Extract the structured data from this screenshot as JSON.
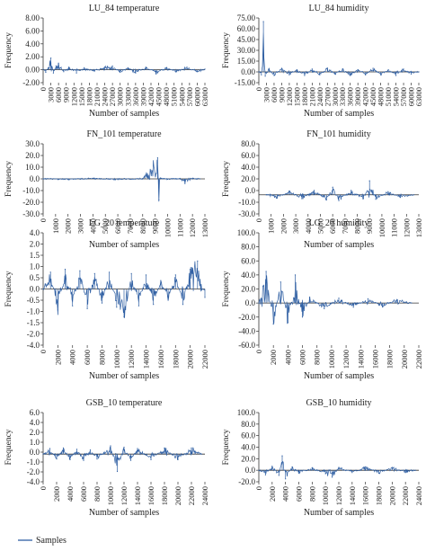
{
  "colors": {
    "series": "#2f5fa3",
    "axis": "#333333",
    "text": "#222222"
  },
  "legend": {
    "label": "Samples",
    "placement": "bottom-left"
  },
  "chart_data": [
    {
      "type": "line",
      "title": "LU_84 temperature",
      "xlabel": "Number of samples",
      "ylabel": "Frequency",
      "xlim": [
        0,
        63000
      ],
      "ylim": [
        -2.0,
        8.0
      ],
      "yticks": [
        "8.00",
        "6.00",
        "4.00",
        "2.00",
        "0.00",
        "-2.00"
      ],
      "xticks": [
        "0",
        "3000",
        "6000",
        "9000",
        "12000",
        "15000",
        "18000",
        "21000",
        "24000",
        "27000",
        "30000",
        "33000",
        "36000",
        "39000",
        "42000",
        "45000",
        "48000",
        "51000",
        "54000",
        "57000",
        "60000",
        "63000"
      ],
      "series": [
        {
          "name": "Samples",
          "note": "noisy signal around 0",
          "x": [
            0,
            1000,
            2000,
            3000,
            4000,
            5000,
            6000,
            8000,
            10000,
            13000,
            16000,
            20000,
            24000,
            27000,
            30000,
            33000,
            36000,
            40000,
            44000,
            48000,
            52000,
            56000,
            60000,
            63000
          ],
          "y": [
            0.1,
            -0.4,
            0.3,
            1.8,
            -0.5,
            0.6,
            1.0,
            -0.3,
            0.4,
            -0.5,
            0.3,
            -0.2,
            0.4,
            0.6,
            -0.4,
            0.3,
            -0.5,
            0.4,
            -0.6,
            0.3,
            -0.3,
            0.4,
            -0.3,
            0.1
          ]
        }
      ]
    },
    {
      "type": "line",
      "title": "LU_84 humidity",
      "xlabel": "Number of samples",
      "ylabel": "Frequency",
      "xlim": [
        0,
        63000
      ],
      "ylim": [
        -15.0,
        75.0
      ],
      "yticks": [
        "75.00",
        "60.00",
        "45.00",
        "30.00",
        "15.00",
        "0.00",
        "-15.00"
      ],
      "xticks": [
        "0",
        "3000",
        "6000",
        "9000",
        "12000",
        "15000",
        "18000",
        "21000",
        "24000",
        "27000",
        "30000",
        "33000",
        "36000",
        "39000",
        "42000",
        "45000",
        "48000",
        "51000",
        "54000",
        "57000",
        "60000",
        "63000"
      ],
      "series": [
        {
          "name": "Samples",
          "x": [
            0,
            1000,
            1800,
            2500,
            4000,
            6000,
            9000,
            12000,
            15000,
            18000,
            21000,
            24000,
            27000,
            30000,
            33000,
            36000,
            39000,
            42000,
            45000,
            48000,
            51000,
            54000,
            57000,
            60000,
            63000
          ],
          "y": [
            0,
            -4,
            70,
            -6,
            4,
            -5,
            5,
            -4,
            3,
            -5,
            4,
            -4,
            5,
            -3,
            4,
            -5,
            3,
            -4,
            5,
            -4,
            3,
            -5,
            4,
            -3,
            0
          ]
        }
      ]
    },
    {
      "type": "line",
      "title": "FN_101 temperature",
      "xlabel": "Number of samples",
      "ylabel": "Frequency",
      "xlim": [
        0,
        13000
      ],
      "ylim": [
        -30.0,
        30.0
      ],
      "yticks": [
        "30.0",
        "20.0",
        "10.0",
        "0.0",
        "-10.0",
        "-20.0",
        "-30.0"
      ],
      "xticks": [
        "0",
        "1000",
        "2000",
        "3000",
        "4000",
        "5000",
        "6000",
        "7000",
        "8000",
        "9000",
        "10000",
        "11000",
        "12000",
        "13000"
      ],
      "series": [
        {
          "name": "Samples",
          "x": [
            0,
            2000,
            4000,
            6000,
            8000,
            9200,
            9300,
            9400,
            10000,
            11000,
            11400,
            12000,
            12600
          ],
          "y": [
            0,
            -0.5,
            0.4,
            -0.6,
            0.3,
            18,
            -18,
            0.5,
            -0.3,
            0.4,
            -4,
            0.5,
            0
          ]
        }
      ]
    },
    {
      "type": "line",
      "title": "FN_101 humidity",
      "xlabel": "Number of samples",
      "ylabel": "Frequency",
      "xlim": [
        0,
        13000
      ],
      "ylim": [
        -30.0,
        80.0
      ],
      "yticks": [
        "80.0",
        "60.0",
        "40.0",
        "20.0",
        "0.0",
        "-10.0",
        "-30.0"
      ],
      "xticks": [
        "0",
        "1000",
        "2000",
        "3000",
        "4000",
        "5000",
        "6000",
        "7000",
        "8000",
        "9000",
        "10000",
        "11000",
        "12000",
        "13000"
      ],
      "series": [
        {
          "name": "Samples",
          "x": [
            600,
            1500,
            2500,
            3500,
            4500,
            5500,
            6000,
            6500,
            7500,
            8500,
            9000,
            9500,
            10500,
            11500,
            12600
          ],
          "y": [
            0,
            -5,
            6,
            -6,
            7,
            -8,
            12,
            -9,
            7,
            -6,
            22,
            -7,
            5,
            -4,
            0
          ]
        }
      ]
    },
    {
      "type": "line",
      "title": "LG_20 temperature",
      "xlabel": "Number of samples",
      "ylabel": "Frequency",
      "xlim": [
        0,
        22000
      ],
      "ylim": [
        -4.0,
        4.0
      ],
      "yticks": [
        "4.0",
        "2.0",
        "1.5",
        "1.0",
        "0.5",
        "0.0",
        "-0.5",
        "-1.0",
        "-1.5",
        "-2.0",
        "-4.0"
      ],
      "xticks": [
        "0",
        "2000",
        "4000",
        "6000",
        "8000",
        "10000",
        "12000",
        "14000",
        "16000",
        "18000",
        "20000",
        "22000"
      ],
      "series": [
        {
          "name": "Samples",
          "x": [
            0,
            1000,
            2000,
            3000,
            4000,
            5000,
            6000,
            7000,
            8000,
            9000,
            10000,
            11000,
            12000,
            13000,
            14000,
            15000,
            16000,
            17000,
            18000,
            19000,
            20000,
            21000,
            22000
          ],
          "y": [
            0,
            1.2,
            -1.5,
            1.4,
            -1.2,
            1.3,
            -1.4,
            1.1,
            -1.0,
            1.2,
            -1.3,
            -2.0,
            1.1,
            -1.2,
            1.0,
            -1.1,
            0.6,
            -0.8,
            1.0,
            -1.1,
            1.4,
            2.0,
            -0.6
          ]
        }
      ]
    },
    {
      "type": "line",
      "title": "LG_20 humidity",
      "xlabel": "Number of samples",
      "ylabel": "Frequency",
      "xlim": [
        0,
        22000
      ],
      "ylim": [
        -60.0,
        100.0
      ],
      "yticks": [
        "100.0",
        "80.0",
        "60.0",
        "40.0",
        "20.0",
        "0.0",
        "-20.0",
        "-40.0",
        "-60.0"
      ],
      "xticks": [
        "0",
        "2000",
        "4000",
        "6000",
        "8000",
        "10000",
        "12000",
        "14000",
        "16000",
        "18000",
        "20000",
        "22000"
      ],
      "series": [
        {
          "name": "Samples",
          "x": [
            0,
            1000,
            2000,
            3000,
            4000,
            5000,
            6000,
            7000,
            9000,
            11000,
            13000,
            15000,
            17000,
            19000,
            21000
          ],
          "y": [
            0,
            45,
            -30,
            30,
            -28,
            40,
            -20,
            8,
            -8,
            7,
            -6,
            6,
            -5,
            5,
            0
          ]
        }
      ]
    },
    {
      "type": "line",
      "title": "GSB_10 temperature",
      "xlabel": "Number of samples",
      "ylabel": "Frequency",
      "xlim": [
        0,
        24000
      ],
      "ylim": [
        -4.0,
        6.0
      ],
      "yticks": [
        "6.0",
        "4.0",
        "2.0",
        "1.0",
        "0.0",
        "-1.0",
        "-2.0",
        "-4.0"
      ],
      "xticks": [
        "0",
        "2000",
        "4000",
        "6000",
        "8000",
        "10000",
        "12000",
        "14000",
        "16000",
        "18000",
        "20000",
        "22000",
        "24000"
      ],
      "series": [
        {
          "name": "Samples",
          "x": [
            0,
            1000,
            2000,
            3000,
            4000,
            5000,
            6000,
            7000,
            8000,
            9000,
            10000,
            11000,
            12000,
            13000,
            14000,
            16000,
            18000,
            20000,
            22000,
            23500
          ],
          "y": [
            0,
            0.8,
            -0.7,
            0.9,
            -0.8,
            0.7,
            -0.9,
            0.6,
            -0.7,
            0.2,
            1.2,
            -2.5,
            1.0,
            -0.9,
            0.8,
            -0.8,
            0.9,
            -0.8,
            0.9,
            0
          ]
        }
      ]
    },
    {
      "type": "line",
      "title": "GSB_10 humidity",
      "xlabel": "Number of samples",
      "ylabel": "Frequency",
      "xlim": [
        0,
        24000
      ],
      "ylim": [
        -20.0,
        100.0
      ],
      "yticks": [
        "100.0",
        "80.0",
        "60.0",
        "40.0",
        "20.0",
        "0.0",
        "-20.0"
      ],
      "xticks": [
        "0",
        "2000",
        "4000",
        "6000",
        "8000",
        "10000",
        "12000",
        "14000",
        "16000",
        "18000",
        "20000",
        "22000",
        "24000"
      ],
      "series": [
        {
          "name": "Samples",
          "x": [
            0,
            1000,
            2000,
            3000,
            3500,
            4000,
            5000,
            6000,
            8000,
            10000,
            11000,
            12000,
            14000,
            16000,
            18000,
            20000,
            22000,
            23500
          ],
          "y": [
            0,
            -8,
            7,
            -9,
            25,
            -15,
            6,
            -5,
            4,
            -6,
            -12,
            5,
            -4,
            6,
            -5,
            5,
            -4,
            0
          ]
        }
      ]
    }
  ]
}
